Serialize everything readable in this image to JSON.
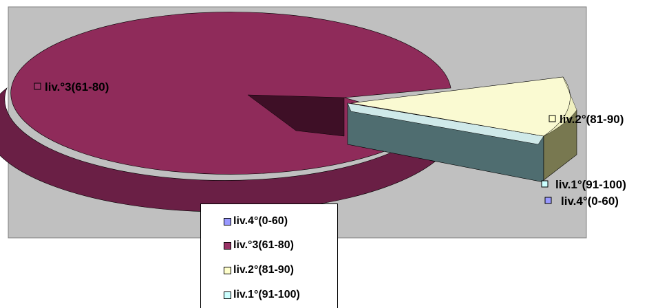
{
  "chart_data": {
    "type": "pie",
    "style": "3d-exploded",
    "slices": [
      {
        "label": "liv.4°(0-60)",
        "value": 0,
        "color": "#9999FF"
      },
      {
        "label": "liv.°3(61-80)",
        "value": 84,
        "color": "#993366"
      },
      {
        "label": "liv.2°(81-90)",
        "value": 13,
        "color": "#FFFFCC"
      },
      {
        "label": "liv.1°(91-100)",
        "value": 3,
        "color": "#CCFFFF"
      }
    ],
    "legend": {
      "position": "bottom",
      "entries": [
        "liv.4°(0-60)",
        "liv.°3(61-80)",
        "liv.2°(81-90)",
        "liv.1°(91-100)"
      ]
    },
    "plot_background": "#C0C0C0"
  }
}
